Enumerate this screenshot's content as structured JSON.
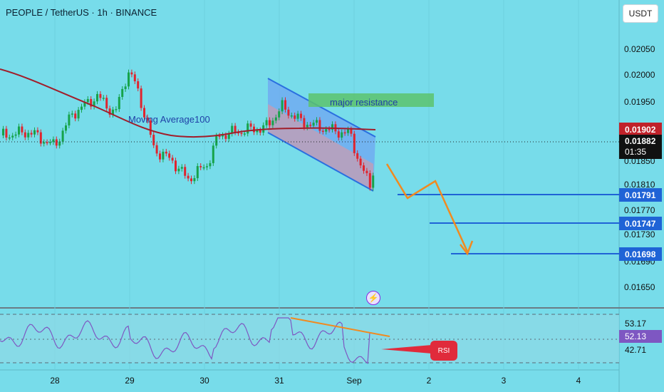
{
  "header": {
    "title": "PEOPLE / TetherUS · 1h · BINANCE",
    "currency_button": "USDT"
  },
  "colors": {
    "background": "#77dcea",
    "bull": "#16a34a",
    "bear": "#e0242e",
    "ma": "#a11d2a",
    "target_lines": "#1f63d6",
    "arrow": "#f18a1f",
    "channel": "#2a6fe0",
    "resistance_zone": "#5cc36d",
    "rsi_line": "#7e57c2"
  },
  "price_axis": {
    "ticks": [
      "0.02050",
      "0.02000",
      "0.01950",
      "0.01850",
      "0.01810",
      "0.01770",
      "0.01730",
      "0.01690",
      "0.01650"
    ],
    "tags": {
      "ma_value": "0.01902",
      "last_price": "0.01882",
      "countdown": "01:35",
      "target_1": "0.01791",
      "target_2": "0.01747",
      "target_3": "0.01698"
    }
  },
  "time_axis": {
    "labels": [
      "28",
      "29",
      "30",
      "31",
      "Sep",
      "2",
      "3",
      "4"
    ]
  },
  "annotations": {
    "moving_average_label": "Moving Average100",
    "resistance_label": "major resistance",
    "rsi_badge": "RSI",
    "flash_icon": "⚡"
  },
  "rsi_axis": {
    "upper": "53.17",
    "value": "52.13",
    "lower": "42.71"
  },
  "chart_data": {
    "type": "candlestick",
    "symbol": "PEOPLE / TetherUS",
    "interval": "1h",
    "exchange": "BINANCE",
    "x_categories": [
      "28",
      "29",
      "30",
      "31",
      "Sep",
      "2",
      "3",
      "4"
    ],
    "y_ticks": [
      0.0205,
      0.02,
      0.0195,
      0.0185,
      0.0181,
      0.0177,
      0.0173,
      0.0169,
      0.0165
    ],
    "last_price": 0.01882,
    "moving_average_100": 0.01902,
    "targets": [
      0.01791,
      0.01747,
      0.01698
    ],
    "resistance_label": "major resistance",
    "rsi": {
      "value": 52.13,
      "upper_band": 53.17,
      "lower_band": 42.71
    }
  }
}
